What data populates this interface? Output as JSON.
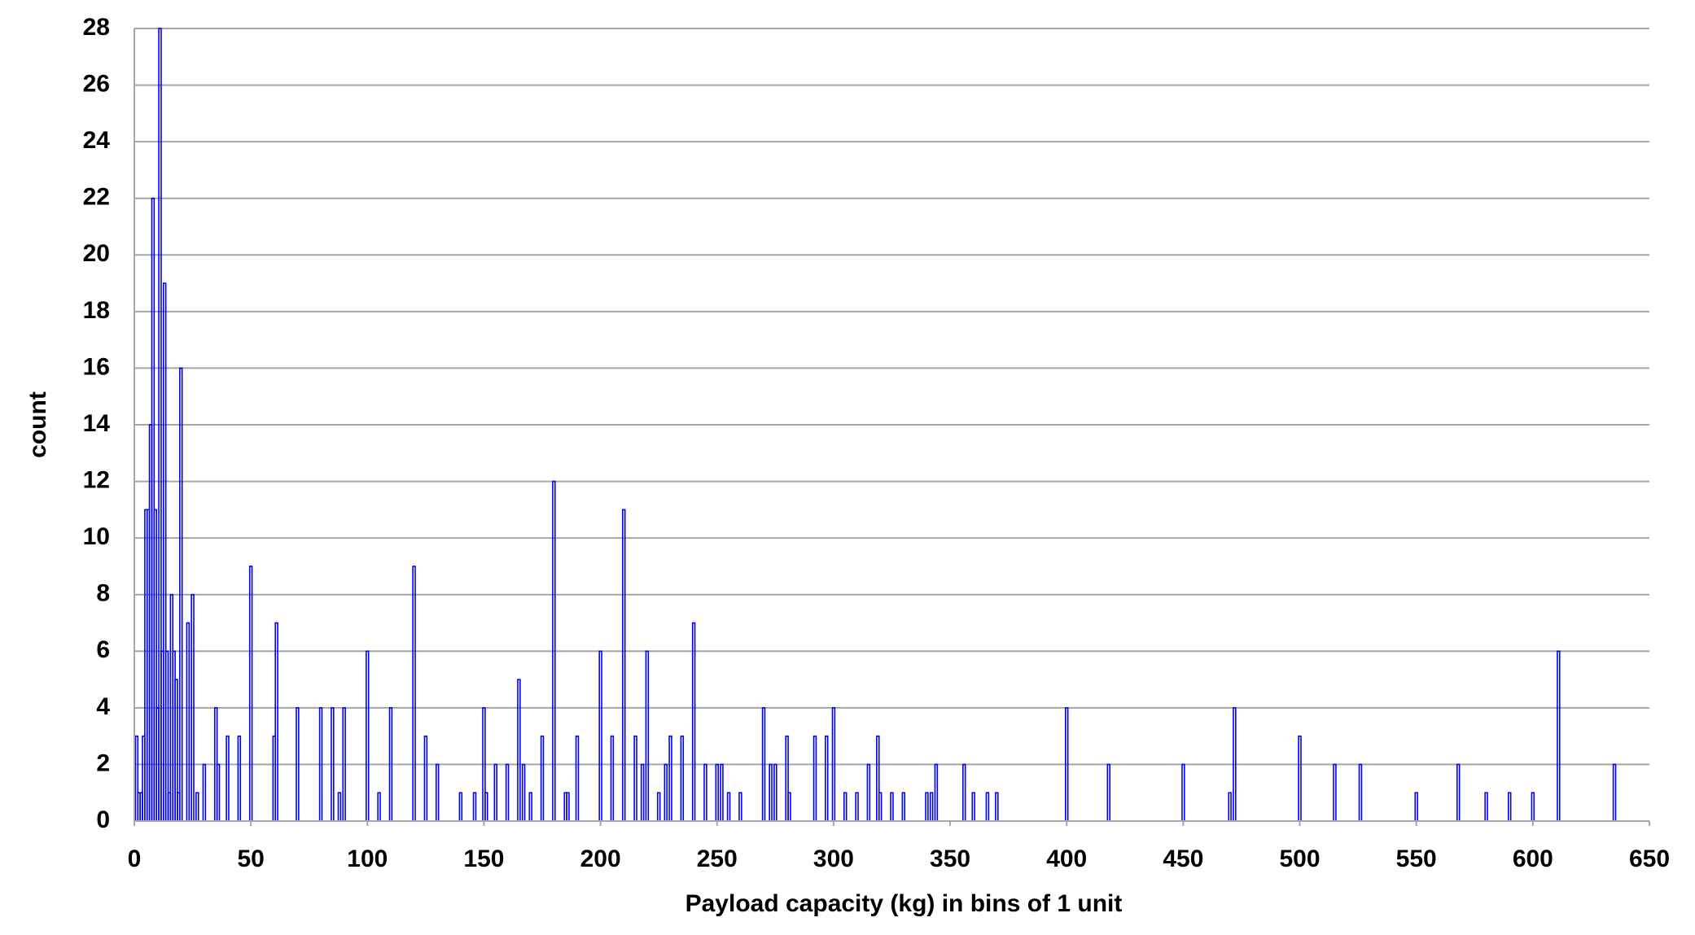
{
  "chart_data": {
    "type": "bar",
    "xlabel": "Payload capacity (kg) in bins of 1 unit",
    "ylabel": "count",
    "color": "#0000ff",
    "grid": true,
    "x": [
      1,
      2,
      3,
      4,
      5,
      6,
      7,
      8,
      9,
      10,
      11,
      12,
      13,
      14,
      15,
      16,
      17,
      18,
      19,
      20,
      23,
      25,
      27,
      30,
      35,
      36,
      40,
      45,
      50,
      60,
      61,
      70,
      80,
      85,
      88,
      90,
      100,
      105,
      110,
      120,
      125,
      130,
      140,
      146,
      150,
      151,
      155,
      160,
      165,
      167,
      170,
      175,
      180,
      185,
      186,
      190,
      200,
      205,
      210,
      215,
      218,
      220,
      225,
      228,
      230,
      235,
      240,
      245,
      250,
      252,
      255,
      260,
      270,
      273,
      275,
      280,
      281,
      292,
      297,
      300,
      305,
      310,
      315,
      319,
      320,
      325,
      330,
      340,
      342,
      344,
      356,
      360,
      366,
      370,
      400,
      418,
      450,
      470,
      472,
      500,
      515,
      526,
      550,
      568,
      580,
      590,
      600,
      611,
      635
    ],
    "values": [
      3,
      1,
      1,
      3,
      11,
      11,
      14,
      22,
      11,
      4,
      28,
      6,
      19,
      6,
      1,
      8,
      6,
      5,
      1,
      16,
      7,
      8,
      1,
      2,
      4,
      2,
      3,
      3,
      9,
      3,
      7,
      4,
      4,
      4,
      1,
      4,
      6,
      1,
      4,
      9,
      3,
      2,
      1,
      1,
      4,
      1,
      2,
      2,
      5,
      2,
      1,
      3,
      12,
      1,
      1,
      3,
      6,
      3,
      11,
      3,
      2,
      6,
      1,
      2,
      3,
      3,
      7,
      2,
      2,
      2,
      1,
      1,
      4,
      2,
      2,
      3,
      1,
      3,
      3,
      4,
      1,
      1,
      2,
      3,
      1,
      1,
      1,
      1,
      1,
      2,
      2,
      1,
      1,
      1,
      4,
      2,
      2,
      1,
      4,
      3,
      2,
      2,
      1,
      2,
      1,
      1,
      1,
      6,
      2
    ],
    "xlim": [
      0,
      650
    ],
    "xticks": [
      0,
      50,
      100,
      150,
      200,
      250,
      300,
      350,
      400,
      450,
      500,
      550,
      600,
      650
    ],
    "ylim": [
      0,
      28
    ],
    "yticks": [
      0,
      2,
      4,
      6,
      8,
      10,
      12,
      14,
      16,
      18,
      20,
      22,
      24,
      26,
      28
    ]
  }
}
